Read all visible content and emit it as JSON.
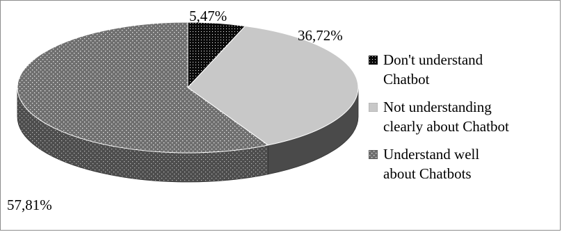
{
  "chart_data": {
    "type": "pie",
    "style": "3d",
    "categories": [
      "Don't understand\nChatbot",
      "Not understanding\nclearly about Chatbot",
      "Understand well\nabout Chatbots"
    ],
    "values": [
      5.47,
      36.72,
      57.81
    ],
    "value_labels": [
      "5,47%",
      "36,72%",
      "57,81%"
    ],
    "legend_position": "right",
    "colors": [
      "#111111",
      "#c8c8c8",
      "#7a7a7a"
    ]
  }
}
